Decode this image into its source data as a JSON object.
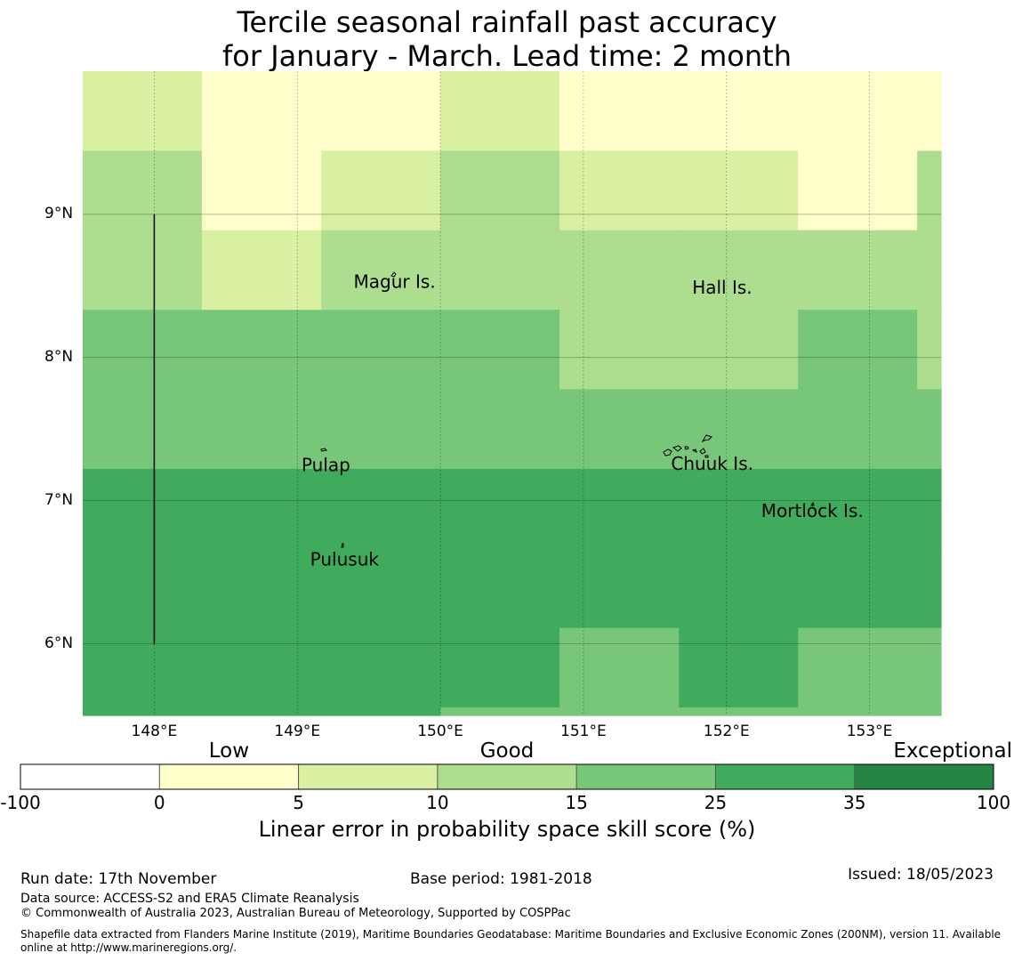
{
  "title": {
    "line1": "Tercile seasonal rainfall past accuracy",
    "line2": "for January - March. Lead time: 2 month"
  },
  "map": {
    "lon_range": [
      147.5,
      153.5
    ],
    "lat_range": [
      5.5,
      10.0
    ],
    "x_ticks": [
      {
        "lon": 148,
        "label": "148°E"
      },
      {
        "lon": 149,
        "label": "149°E"
      },
      {
        "lon": 150,
        "label": "150°E"
      },
      {
        "lon": 151,
        "label": "151°E"
      },
      {
        "lon": 152,
        "label": "152°E"
      },
      {
        "lon": 153,
        "label": "153°E"
      }
    ],
    "y_ticks": [
      {
        "lat": 9,
        "label": "9°N"
      },
      {
        "lat": 8,
        "label": "8°N"
      },
      {
        "lat": 7,
        "label": "7°N"
      },
      {
        "lat": 6,
        "label": "6°N"
      }
    ],
    "places": [
      {
        "name": "Magur Is.",
        "lon": 149.68,
        "lat": 8.52
      },
      {
        "name": "Hall Is.",
        "lon": 151.97,
        "lat": 8.48
      },
      {
        "name": "Pulap",
        "lon": 149.2,
        "lat": 7.24
      },
      {
        "name": "Chuuk Is.",
        "lon": 151.9,
        "lat": 7.25
      },
      {
        "name": "Mortlock Is.",
        "lon": 152.6,
        "lat": 6.92
      },
      {
        "name": "Pulusuk",
        "lon": 149.33,
        "lat": 6.58
      }
    ],
    "boundary_line": {
      "lon": 148.0,
      "lat_from": 6.0,
      "lat_to": 9.0
    }
  },
  "grid": {
    "lon_edges": [
      147.5,
      148.333,
      149.167,
      150.0,
      150.833,
      151.667,
      152.5,
      153.333,
      153.5
    ],
    "lat_edges": [
      10.0,
      9.444,
      8.889,
      8.333,
      7.778,
      7.222,
      6.667,
      6.111,
      5.556,
      5.5
    ],
    "classes": [
      [
        2,
        1,
        1,
        2,
        1,
        1,
        1,
        1
      ],
      [
        3,
        1,
        2,
        3,
        2,
        2,
        1,
        3
      ],
      [
        3,
        2,
        3,
        3,
        3,
        3,
        3,
        3
      ],
      [
        4,
        4,
        4,
        4,
        3,
        3,
        4,
        3
      ],
      [
        4,
        4,
        4,
        4,
        4,
        4,
        4,
        4
      ],
      [
        5,
        5,
        5,
        5,
        5,
        5,
        5,
        5
      ],
      [
        5,
        5,
        5,
        5,
        5,
        5,
        5,
        5
      ],
      [
        5,
        5,
        5,
        5,
        4,
        5,
        4,
        4
      ],
      [
        5,
        5,
        5,
        4,
        4,
        4,
        4,
        4
      ]
    ]
  },
  "colorbar": {
    "bins": [
      -100,
      0,
      5,
      10,
      15,
      25,
      35,
      100
    ],
    "tick_labels": [
      "-100",
      "0",
      "5",
      "10",
      "15",
      "25",
      "35",
      "100"
    ],
    "colors": [
      "#ffffff",
      "#ffffcc",
      "#d9f0a3",
      "#addd8e",
      "#78c679",
      "#41ab5d",
      "#238443"
    ],
    "categories": [
      {
        "label": "Low",
        "value": 2.5
      },
      {
        "label": "Good",
        "value": 12.5
      },
      {
        "label": "Exceptional",
        "value": 85
      }
    ],
    "title": "Linear error in probability space skill score (%)"
  },
  "footer": {
    "run_date": "Run date: 17th November",
    "base_period": "Base period: 1981-2018",
    "issued": "Issued: 18/05/2023",
    "data_source": "Data source: ACCESS-S2 and ERA5 Climate Reanalysis",
    "copyright": "© Commonwealth of Australia 2023, Australian Bureau of Meteorology, Supported by COSPPac",
    "shapefile_line1": "Shapefile data extracted from Flanders Marine Institute (2019), Maritime Boundaries Geodatabase: Maritime Boundaries and Exclusive Economic Zones (200NM), version 11. Available",
    "shapefile_line2": "online at http://www.marineregions.org/."
  }
}
